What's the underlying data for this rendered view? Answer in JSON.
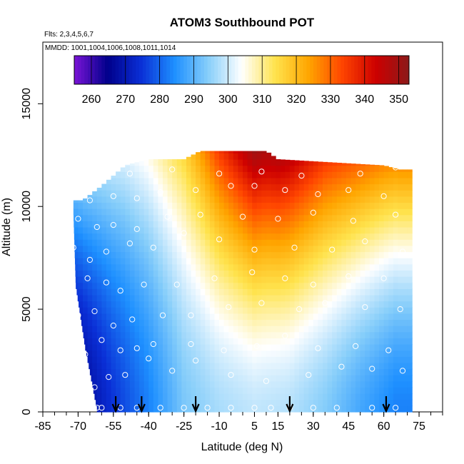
{
  "chart_data": {
    "type": "heatmap",
    "title": "ATOM3 Southbound POT",
    "flights_label": "Flts: 2,3,4,5,6,7",
    "dates_label": "MMDD: 1001,1004,1006,1008,1011,1014",
    "xlabel": "Latitude (deg N)",
    "ylabel": "Altitude (m)",
    "xlim": [
      -85,
      85
    ],
    "ylim": [
      0,
      18000
    ],
    "x_ticks": [
      -85,
      -70,
      -55,
      -40,
      -25,
      -10,
      5,
      15,
      30,
      45,
      60,
      75
    ],
    "y_ticks": [
      0,
      5000,
      10000,
      15000
    ],
    "colorbar": {
      "ticks": [
        260,
        270,
        280,
        290,
        300,
        310,
        320,
        330,
        340,
        350
      ],
      "range": [
        255,
        353
      ],
      "colors": [
        "#7a14d6",
        "#00008b",
        "#0a2fd6",
        "#1e90ff",
        "#87cefa",
        "#ffffff",
        "#ffe34d",
        "#ffa500",
        "#ff4500",
        "#cd0000",
        "#8b1a1a"
      ]
    },
    "field": {
      "profiles": [
        {
          "lat": -70,
          "surface": 265,
          "tropopause": 290
        },
        {
          "lat": -55,
          "surface": 275,
          "tropopause": 298
        },
        {
          "lat": -40,
          "surface": 283,
          "tropopause": 305
        },
        {
          "lat": -25,
          "surface": 293,
          "tropopause": 315
        },
        {
          "lat": -10,
          "surface": 297,
          "tropopause": 335
        },
        {
          "lat": 5,
          "surface": 299,
          "tropopause": 350
        },
        {
          "lat": 20,
          "surface": 298,
          "tropopause": 345
        },
        {
          "lat": 35,
          "surface": 294,
          "tropopause": 335
        },
        {
          "lat": 50,
          "surface": 288,
          "tropopause": 330
        },
        {
          "lat": 65,
          "surface": 283,
          "tropopause": 325
        }
      ],
      "top_altitude": [
        {
          "lat": -68,
          "alt": 10300
        },
        {
          "lat": -60,
          "alt": 11000
        },
        {
          "lat": -50,
          "alt": 12000
        },
        {
          "lat": -40,
          "alt": 12300
        },
        {
          "lat": -25,
          "alt": 12300
        },
        {
          "lat": -18,
          "alt": 12700
        },
        {
          "lat": 10,
          "alt": 12700
        },
        {
          "lat": 15,
          "alt": 12300
        },
        {
          "lat": 60,
          "alt": 12000
        },
        {
          "lat": 67,
          "alt": 11800
        }
      ],
      "left_edge": [
        {
          "alt": 0,
          "lat": -62
        },
        {
          "alt": 3000,
          "lat": -67
        },
        {
          "alt": 6000,
          "lat": -71
        },
        {
          "alt": 9500,
          "lat": -72
        }
      ],
      "right_edge_lat": 71
    },
    "sample_points": [
      [
        -64,
        200
      ],
      [
        -62,
        200
      ],
      [
        -60,
        200
      ],
      [
        -52,
        200
      ],
      [
        -45,
        200
      ],
      [
        -35,
        200
      ],
      [
        -25,
        200
      ],
      [
        -15,
        200
      ],
      [
        -5,
        200
      ],
      [
        5,
        200
      ],
      [
        12,
        200
      ],
      [
        20,
        200
      ],
      [
        30,
        200
      ],
      [
        40,
        200
      ],
      [
        55,
        200
      ],
      [
        65,
        200
      ],
      [
        -63,
        1200
      ],
      [
        -57,
        1700
      ],
      [
        -50,
        1800
      ],
      [
        -40,
        2600
      ],
      [
        -30,
        2000
      ],
      [
        -20,
        2500
      ],
      [
        -5,
        1800
      ],
      [
        10,
        1500
      ],
      [
        28,
        1800
      ],
      [
        42,
        2200
      ],
      [
        55,
        2100
      ],
      [
        68,
        2000
      ],
      [
        -67,
        2800
      ],
      [
        -60,
        3500
      ],
      [
        -52,
        3000
      ],
      [
        -45,
        3100
      ],
      [
        -38,
        3300
      ],
      [
        -22,
        3300
      ],
      [
        -8,
        3000
      ],
      [
        6,
        3200
      ],
      [
        18,
        3700
      ],
      [
        32,
        3100
      ],
      [
        48,
        3200
      ],
      [
        62,
        3000
      ],
      [
        -70,
        4700
      ],
      [
        -63,
        4900
      ],
      [
        -55,
        4200
      ],
      [
        -47,
        4500
      ],
      [
        -34,
        4700
      ],
      [
        -22,
        4700
      ],
      [
        -6,
        5100
      ],
      [
        8,
        5300
      ],
      [
        24,
        5000
      ],
      [
        35,
        5300
      ],
      [
        52,
        5100
      ],
      [
        67,
        5000
      ],
      [
        -66,
        6500
      ],
      [
        -58,
        6300
      ],
      [
        -52,
        5900
      ],
      [
        -42,
        6200
      ],
      [
        -28,
        6200
      ],
      [
        -12,
        6500
      ],
      [
        4,
        6800
      ],
      [
        18,
        6500
      ],
      [
        30,
        6200
      ],
      [
        45,
        6600
      ],
      [
        60,
        6500
      ],
      [
        -72,
        8000
      ],
      [
        -65,
        7400
      ],
      [
        -58,
        7800
      ],
      [
        -48,
        8200
      ],
      [
        -38,
        8000
      ],
      [
        -25,
        8700
      ],
      [
        -10,
        8400
      ],
      [
        5,
        7900
      ],
      [
        22,
        8000
      ],
      [
        38,
        7900
      ],
      [
        52,
        8300
      ],
      [
        68,
        7800
      ],
      [
        -70,
        9400
      ],
      [
        -62,
        9000
      ],
      [
        -55,
        9100
      ],
      [
        -45,
        8900
      ],
      [
        -32,
        9500
      ],
      [
        -18,
        9600
      ],
      [
        0,
        9500
      ],
      [
        15,
        9400
      ],
      [
        30,
        9700
      ],
      [
        47,
        9300
      ],
      [
        65,
        9600
      ],
      [
        -65,
        10300
      ],
      [
        -55,
        10500
      ],
      [
        -45,
        10400
      ],
      [
        -35,
        10700
      ],
      [
        -20,
        10800
      ],
      [
        -5,
        11000
      ],
      [
        5,
        11000
      ],
      [
        18,
        10800
      ],
      [
        32,
        10600
      ],
      [
        45,
        10800
      ],
      [
        60,
        10500
      ],
      [
        -48,
        11600
      ],
      [
        -30,
        11800
      ],
      [
        -10,
        11600
      ],
      [
        8,
        11700
      ],
      [
        25,
        11500
      ],
      [
        50,
        11600
      ],
      [
        65,
        11900
      ]
    ],
    "flight_arrows_lat": [
      -54,
      -43,
      -20,
      20,
      61
    ]
  }
}
